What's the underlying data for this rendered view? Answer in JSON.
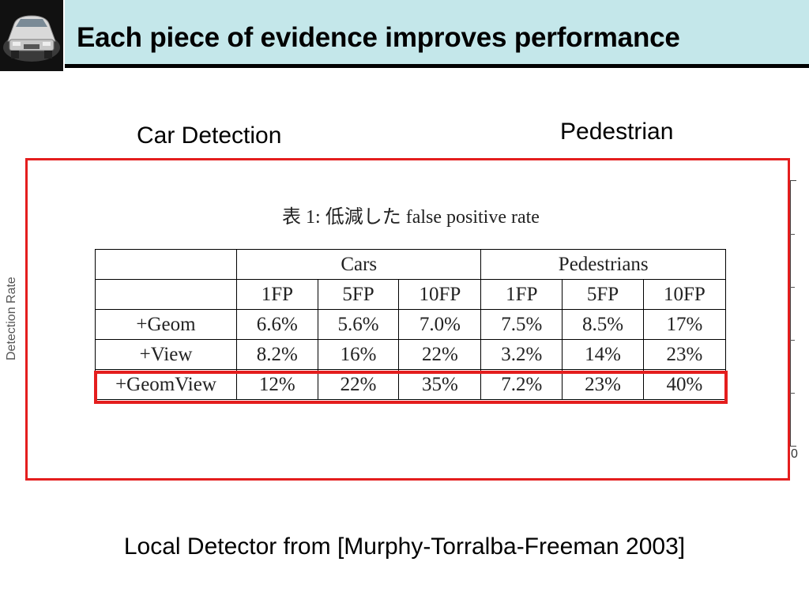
{
  "slide": {
    "title": "Each piece of evidence improves performance",
    "labels": {
      "car": "Car Detection",
      "pedestrian": "Pedestrian"
    },
    "background_chart": {
      "ylabel": "Detection Rate",
      "tick_zero": "0"
    },
    "footer": "Local Detector from [Murphy-Torralba-Freeman 2003]",
    "accent_color": "#e41e1e",
    "title_bar_color": "#c4e7ea"
  },
  "table": {
    "caption": "表 1: 低減した false positive rate",
    "groups": [
      "Cars",
      "Pedestrians"
    ],
    "columns": [
      "1FP",
      "5FP",
      "10FP",
      "1FP",
      "5FP",
      "10FP"
    ],
    "rows": [
      {
        "label": "+Geom",
        "cells": [
          "6.6%",
          "5.6%",
          "7.0%",
          "7.5%",
          "8.5%",
          "17%"
        ]
      },
      {
        "label": "+View",
        "cells": [
          "8.2%",
          "16%",
          "22%",
          "3.2%",
          "14%",
          "23%"
        ]
      },
      {
        "label": "+GeomView",
        "cells": [
          "12%",
          "22%",
          "35%",
          "7.2%",
          "23%",
          "40%"
        ]
      }
    ]
  }
}
